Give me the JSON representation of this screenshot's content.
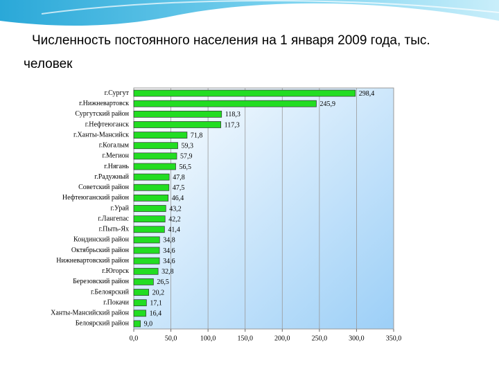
{
  "chart_data": {
    "type": "bar",
    "orientation": "horizontal",
    "title": "Численность постоянного населения на 1 января  2009 года, тыс. человек",
    "categories": [
      "г.Сургут",
      "г.Нижневартовск",
      "Сургутский район",
      "г.Нефтеюганск",
      "г.Ханты-Мансийск",
      "г.Когалым",
      "г.Мегион",
      "г.Нягань",
      "г.Радужный",
      "Советский район",
      "Нефтеюганский район",
      "г.Урай",
      "г.Лангепас",
      "г.Пыть-Ях",
      "Кондинский район",
      "Октябрьский район",
      "Нижневартовский район",
      "г.Югорск",
      "Березовский район",
      "г.Белоярский",
      "г.Покачи",
      "Ханты-Мансийский район",
      "Белоярский район"
    ],
    "values": [
      298.4,
      245.9,
      118.3,
      117.3,
      71.8,
      59.3,
      57.9,
      56.5,
      47.8,
      47.5,
      46.4,
      43.2,
      42.2,
      41.4,
      34.8,
      34.6,
      34.6,
      32.8,
      26.5,
      20.2,
      17.1,
      16.4,
      9.0
    ],
    "value_labels": [
      "298,4",
      "245,9",
      "118,3",
      "117,3",
      "71,8",
      "59,3",
      "57,9",
      "56,5",
      "47,8",
      "47,5",
      "46,4",
      "43,2",
      "42,2",
      "41,4",
      "34,8",
      "34,6",
      "34,6",
      "32,8",
      "26,5",
      "20,2",
      "17,1",
      "16,4",
      "9,0"
    ],
    "color": "#22dd22",
    "xlim": [
      0,
      350
    ],
    "xticks": [
      {
        "value": 0,
        "label": "0,0"
      },
      {
        "value": 50,
        "label": "50,0"
      },
      {
        "value": 100,
        "label": "100,0"
      },
      {
        "value": 150,
        "label": "150,0"
      },
      {
        "value": 200,
        "label": "200,0"
      },
      {
        "value": 250,
        "label": "250,0"
      },
      {
        "value": 300,
        "label": "300,0"
      },
      {
        "value": 350,
        "label": "350,0"
      }
    ],
    "grid": true
  }
}
